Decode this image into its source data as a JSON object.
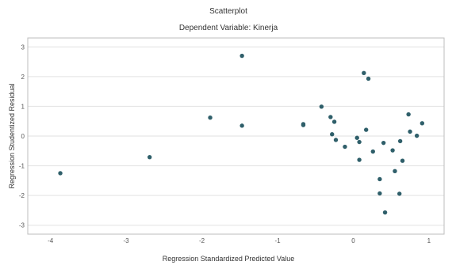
{
  "chart_data": {
    "type": "scatter",
    "title": "Scatterplot",
    "subtitle": "Dependent Variable: Kinerja",
    "xlabel": "Regression Standardized Predicted Value",
    "ylabel": "Regression Studentized Residual",
    "xlim": [
      -4.3,
      1.2
    ],
    "ylim": [
      -3.3,
      3.3
    ],
    "xticks": [
      -4,
      -3,
      -2,
      -1,
      0,
      1
    ],
    "yticks": [
      -3,
      -2,
      -1,
      0,
      1,
      2,
      3
    ],
    "xtick_labels": [
      "-4",
      "-3",
      "-2",
      "-1",
      "0",
      "1"
    ],
    "ytick_labels": [
      "-3",
      "-2",
      "-1",
      "0",
      "1",
      "2",
      "3"
    ],
    "grid": "horizontal",
    "point_color": "#2f5f6a",
    "points": [
      {
        "x": -3.87,
        "y": -1.25
      },
      {
        "x": -2.69,
        "y": -0.71
      },
      {
        "x": -1.89,
        "y": 0.62
      },
      {
        "x": -1.47,
        "y": 2.7
      },
      {
        "x": -1.47,
        "y": 0.35
      },
      {
        "x": -0.66,
        "y": 0.37
      },
      {
        "x": -0.66,
        "y": 0.4
      },
      {
        "x": -0.42,
        "y": 0.99
      },
      {
        "x": -0.3,
        "y": 0.64
      },
      {
        "x": -0.25,
        "y": 0.48
      },
      {
        "x": -0.28,
        "y": 0.06
      },
      {
        "x": -0.23,
        "y": -0.13
      },
      {
        "x": -0.11,
        "y": -0.36
      },
      {
        "x": 0.05,
        "y": -0.06
      },
      {
        "x": 0.08,
        "y": -0.2
      },
      {
        "x": 0.08,
        "y": -0.8
      },
      {
        "x": 0.14,
        "y": 2.12
      },
      {
        "x": 0.2,
        "y": 1.93
      },
      {
        "x": 0.17,
        "y": 0.21
      },
      {
        "x": 0.26,
        "y": -0.52
      },
      {
        "x": 0.35,
        "y": -1.45
      },
      {
        "x": 0.35,
        "y": -1.93
      },
      {
        "x": 0.4,
        "y": -0.23
      },
      {
        "x": 0.42,
        "y": -2.57
      },
      {
        "x": 0.52,
        "y": -0.48
      },
      {
        "x": 0.55,
        "y": -1.18
      },
      {
        "x": 0.61,
        "y": -1.94
      },
      {
        "x": 0.62,
        "y": -0.17
      },
      {
        "x": 0.65,
        "y": -0.83
      },
      {
        "x": 0.73,
        "y": 0.73
      },
      {
        "x": 0.75,
        "y": 0.15
      },
      {
        "x": 0.84,
        "y": 0.01
      },
      {
        "x": 0.91,
        "y": 0.43
      }
    ]
  }
}
